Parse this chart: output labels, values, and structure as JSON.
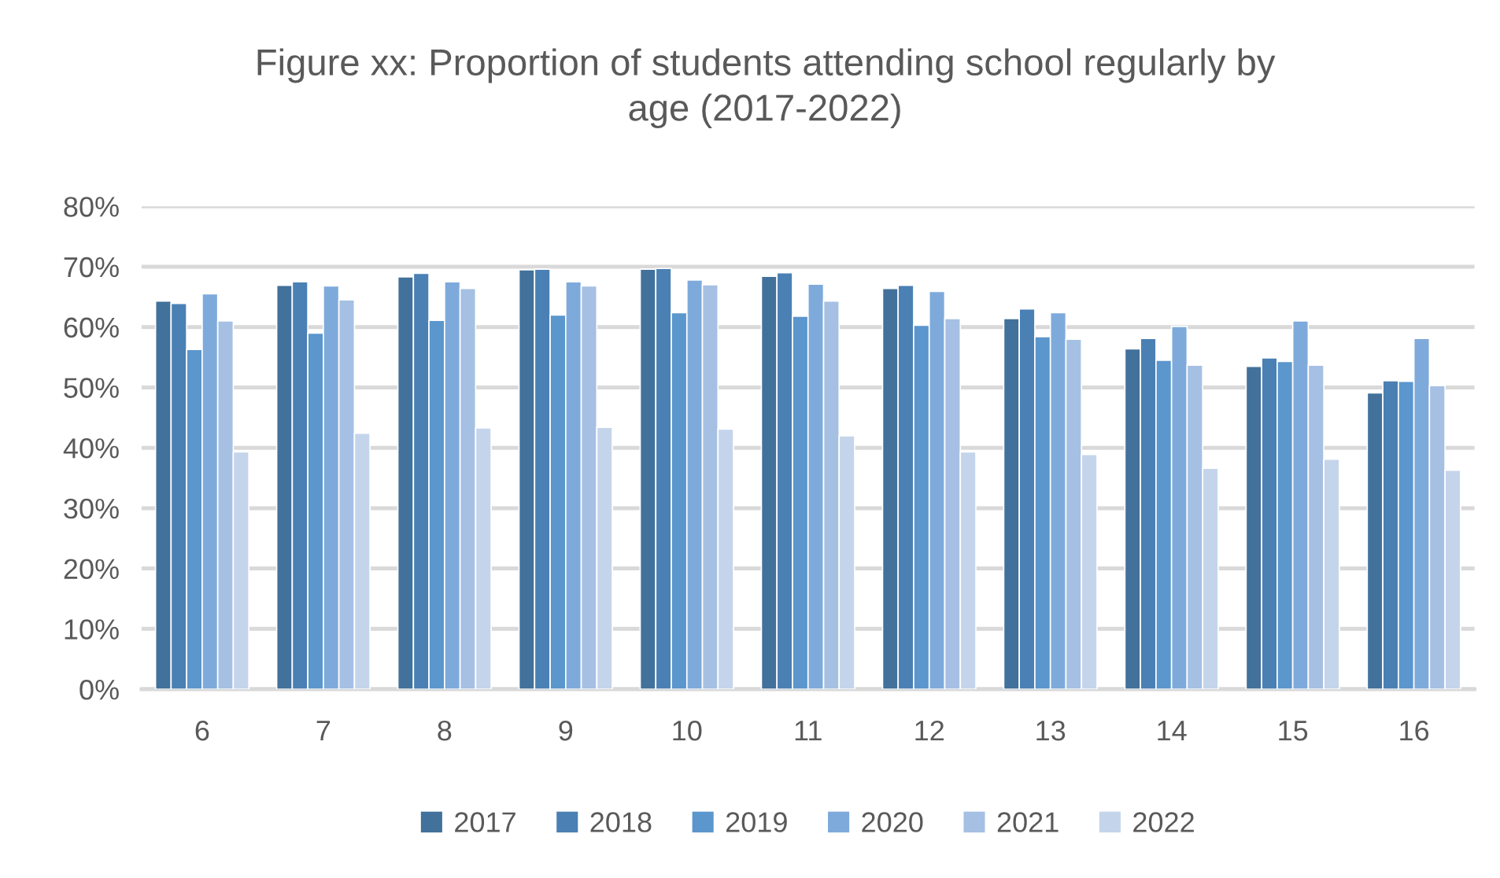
{
  "chart_data": {
    "type": "bar",
    "title": "Figure xx: Proportion of students attending school regularly by age (2017-2022)",
    "categories": [
      "6",
      "7",
      "8",
      "9",
      "10",
      "11",
      "12",
      "13",
      "14",
      "15",
      "16"
    ],
    "series": [
      {
        "name": "2017",
        "color": "#42719b",
        "values": [
          64.3,
          66.9,
          68.3,
          69.5,
          69.6,
          68.4,
          66.4,
          61.4,
          56.4,
          53.5,
          49.1
        ]
      },
      {
        "name": "2018",
        "color": "#4a80b4",
        "values": [
          63.9,
          67.5,
          68.9,
          69.6,
          69.7,
          69.0,
          66.9,
          63.0,
          58.1,
          54.9,
          51.1
        ]
      },
      {
        "name": "2019",
        "color": "#5b96cd",
        "values": [
          56.3,
          59.0,
          61.1,
          62.0,
          62.4,
          61.8,
          60.3,
          58.4,
          54.5,
          54.3,
          51.0
        ]
      },
      {
        "name": "2020",
        "color": "#7eaadb",
        "values": [
          65.5,
          66.8,
          67.5,
          67.5,
          67.8,
          67.1,
          65.9,
          62.4,
          60.1,
          61.0,
          58.1
        ]
      },
      {
        "name": "2021",
        "color": "#a5c0e3",
        "values": [
          61.0,
          64.5,
          66.4,
          66.8,
          67.0,
          64.3,
          61.4,
          58.0,
          53.7,
          53.7,
          50.3
        ]
      },
      {
        "name": "2022",
        "color": "#c4d5eb",
        "values": [
          39.3,
          42.4,
          43.3,
          43.4,
          43.1,
          42.0,
          39.3,
          38.9,
          36.6,
          38.1,
          36.3
        ]
      }
    ],
    "ylim": [
      0,
      80
    ],
    "yticks": [
      {
        "value": 0,
        "label": "0%"
      },
      {
        "value": 10,
        "label": "10%"
      },
      {
        "value": 20,
        "label": "20%"
      },
      {
        "value": 30,
        "label": "30%"
      },
      {
        "value": 40,
        "label": "40%"
      },
      {
        "value": 50,
        "label": "50%"
      },
      {
        "value": 60,
        "label": "60%"
      },
      {
        "value": 70,
        "label": "70%"
      },
      {
        "value": 80,
        "label": "80%"
      }
    ],
    "grid": "y",
    "legend": "bottom"
  }
}
